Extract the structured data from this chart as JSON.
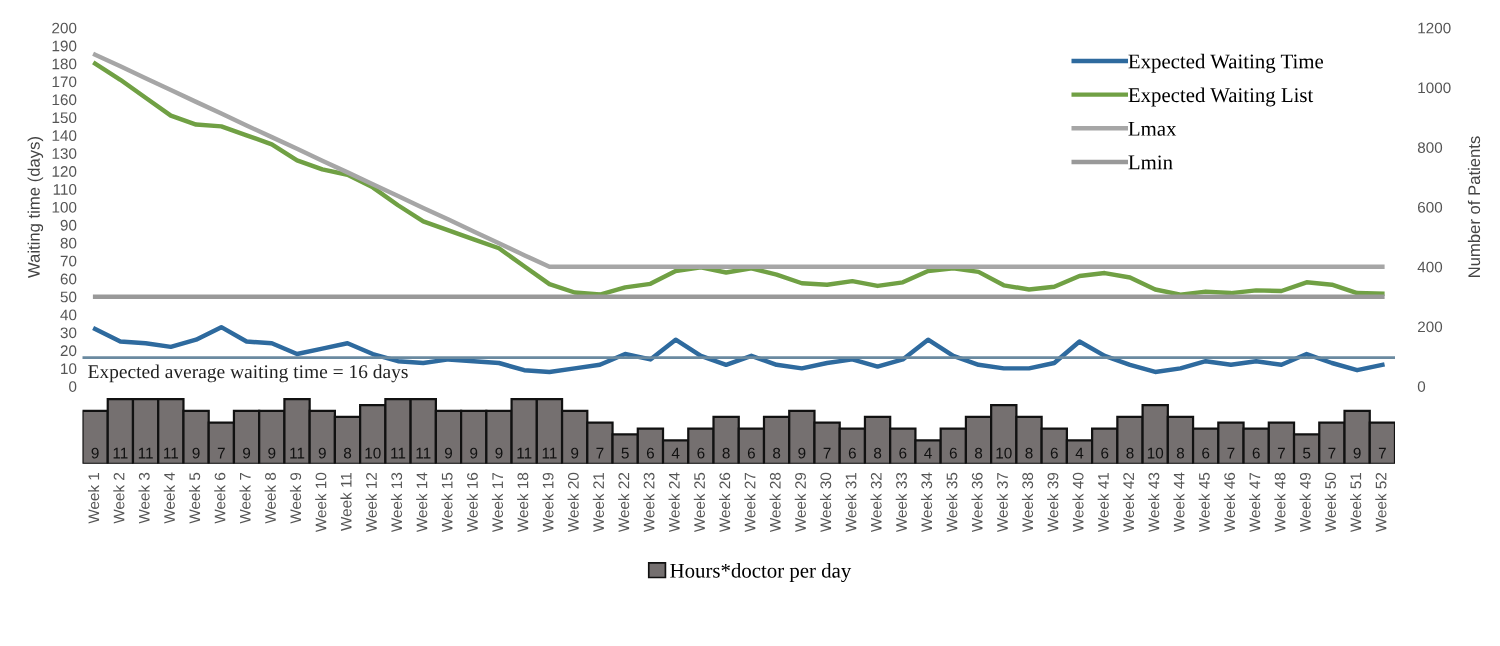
{
  "chart_data": [
    {
      "type": "line",
      "categories": [
        null,
        null,
        null,
        null,
        null,
        null,
        null,
        null,
        null,
        null,
        null,
        null,
        null,
        null,
        null,
        null,
        null,
        null,
        null,
        null,
        null,
        null,
        null,
        null,
        null,
        null,
        null,
        null,
        null,
        null,
        null,
        null,
        null,
        null,
        null,
        null,
        null,
        null,
        null,
        null,
        null,
        null,
        null,
        null,
        null,
        null,
        null,
        null,
        null,
        null,
        null,
        null
      ],
      "series": [
        {
          "name": "Expected Waiting Time",
          "color": "#2e6a9e",
          "values": [
            32,
            25,
            24,
            22,
            26,
            33,
            25,
            24,
            18,
            21,
            24,
            18,
            14,
            13,
            15,
            14,
            13,
            9,
            8,
            10,
            12,
            18,
            15,
            26,
            17,
            12,
            17,
            12,
            10,
            13,
            15,
            11,
            15,
            26,
            17,
            12,
            10,
            10,
            13,
            25,
            17,
            12,
            8,
            10,
            14,
            12,
            14,
            12,
            18,
            13,
            9,
            12
          ]
        },
        {
          "name": "Expected Waiting List",
          "color": "#70a044",
          "axis": "y2",
          "values": [
            1080,
            1026,
            966,
            906,
            876,
            870,
            840,
            810,
            756,
            726,
            708,
            666,
            606,
            552,
            522,
            492,
            462,
            402,
            342,
            314,
            307,
            331,
            343,
            386,
            398,
            381,
            395,
            374,
            345,
            340,
            352,
            336,
            348,
            386,
            395,
            383,
            338,
            324,
            333,
            369,
            379,
            364,
            324,
            307,
            317,
            312,
            321,
            319,
            348,
            340,
            312,
            310
          ]
        },
        {
          "name": "Lmax",
          "color": "#a6a6a6",
          "axis": "y2",
          "values": [
            1110,
            1071,
            1031,
            992,
            952,
            913,
            873,
            834,
            795,
            755,
            716,
            676,
            637,
            597,
            558,
            518,
            479,
            439,
            400,
            400,
            400,
            400,
            400,
            400,
            400,
            400,
            400,
            400,
            400,
            400,
            400,
            400,
            400,
            400,
            400,
            400,
            400,
            400,
            400,
            400,
            400,
            400,
            400,
            400,
            400,
            400,
            400,
            400,
            400,
            400,
            400,
            400
          ]
        },
        {
          "name": "Lmin",
          "color": "#999999",
          "axis": "y2",
          "values": [
            300,
            300,
            300,
            300,
            300,
            300,
            300,
            300,
            300,
            300,
            300,
            300,
            300,
            300,
            300,
            300,
            300,
            300,
            300,
            300,
            300,
            300,
            300,
            300,
            300,
            300,
            300,
            300,
            300,
            300,
            300,
            300,
            300,
            300,
            300,
            300,
            300,
            300,
            300,
            300,
            300,
            300,
            300,
            300,
            300,
            300,
            300,
            300,
            300,
            300,
            300,
            300
          ]
        }
      ],
      "ref_lines": [
        {
          "axis": "y",
          "value": 16,
          "label": "Expected average waiting time = 16 days",
          "color": "#6a8aa0"
        }
      ],
      "ylabel": "Waiting time (days)",
      "y2label": "Number of Patients",
      "ylim": [
        0,
        200
      ],
      "yticks": [
        0,
        10,
        20,
        30,
        40,
        50,
        60,
        70,
        80,
        90,
        100,
        110,
        120,
        130,
        140,
        150,
        160,
        170,
        180,
        190,
        200
      ],
      "y2lim": [
        0,
        1200
      ],
      "y2ticks": [
        0,
        200,
        400,
        600,
        800,
        1000,
        1200
      ],
      "legend": "top right",
      "tick_labels": "y"
    },
    {
      "type": "bar",
      "categories": [
        "Week 1",
        "Week 2",
        "Week 3",
        "Week 4",
        "Week 5",
        "Week 6",
        "Week 7",
        "Week 8",
        "Week 9",
        "Week 10",
        "Week 11",
        "Week 12",
        "Week 13",
        "Week 14",
        "Week 15",
        "Week 16",
        "Week 17",
        "Week 18",
        "Week 19",
        "Week 20",
        "Week 21",
        "Week 22",
        "Week 23",
        "Week 24",
        "Week 25",
        "Week 26",
        "Week 27",
        "Week 28",
        "Week 29",
        "Week 30",
        "Week 31",
        "Week 32",
        "Week 33",
        "Week 34",
        "Week 35",
        "Week 36",
        "Week 37",
        "Week 38",
        "Week 39",
        "Week 40",
        "Week 41",
        "Week 42",
        "Week 43",
        "Week 44",
        "Week 45",
        "Week 46",
        "Week 47",
        "Week 48",
        "Week 49",
        "Week 50",
        "Week 51",
        "Week 52"
      ],
      "series": [
        {
          "name": "Hours*doctor per day",
          "color": "#757070",
          "values": [
            9,
            11,
            11,
            11,
            9,
            7,
            9,
            9,
            11,
            9,
            8,
            10,
            11,
            11,
            9,
            9,
            9,
            11,
            11,
            9,
            7,
            5,
            6,
            4,
            6,
            8,
            6,
            8,
            9,
            7,
            6,
            8,
            6,
            4,
            6,
            8,
            10,
            8,
            6,
            4,
            6,
            8,
            10,
            8,
            6,
            7,
            6,
            7,
            5,
            7,
            9,
            7
          ]
        }
      ],
      "data_labels": true,
      "legend": "bottom",
      "tick_labels": "x"
    }
  ]
}
